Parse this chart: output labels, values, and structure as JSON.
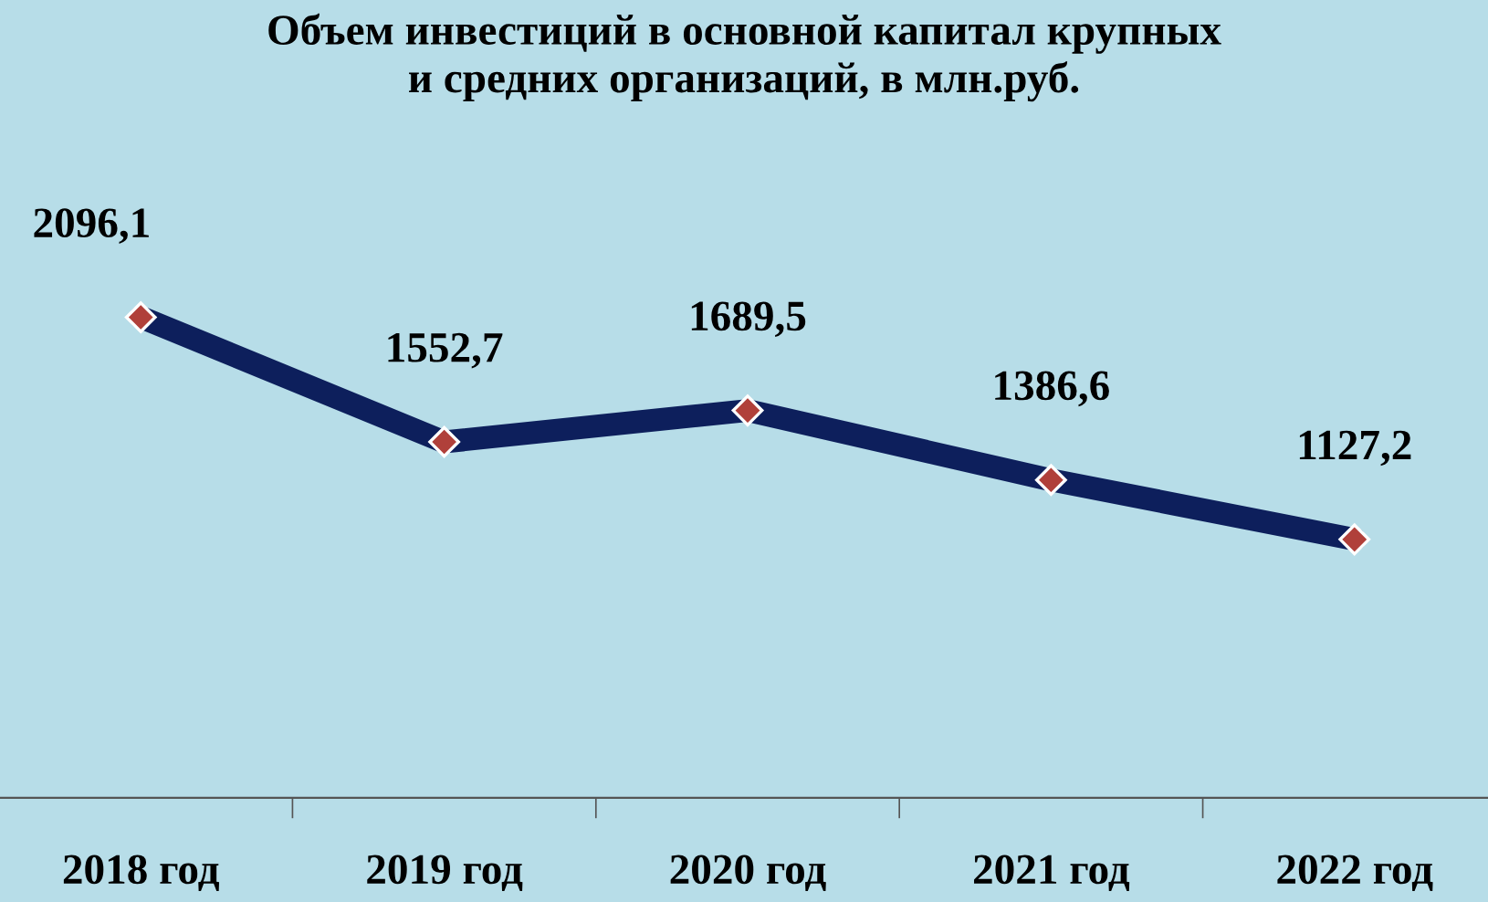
{
  "chart_data": {
    "type": "line",
    "title": "Объем инвестиций в основной капитал крупных\nи средних организаций, в млн.руб.",
    "categories": [
      "2018 год",
      "2019 год",
      "2020 год",
      "2021 год",
      "2022 год"
    ],
    "series": [
      {
        "color": "#0d1f5c",
        "values": [
          2096.1,
          1552.7,
          1689.5,
          1386.6,
          1127.2
        ],
        "value_labels": [
          "2096,1",
          "1552,7",
          "1689,5",
          "1386,6",
          "1127,2"
        ]
      }
    ],
    "tick_labels": "x",
    "marker": "diamond",
    "line_style": "solid",
    "grid": false,
    "legend": false
  }
}
